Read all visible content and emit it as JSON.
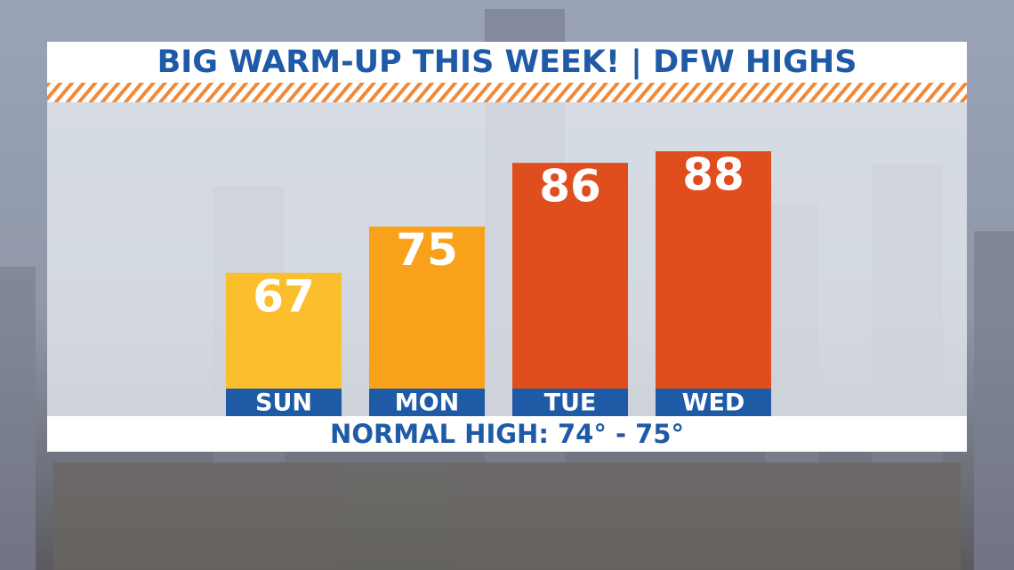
{
  "chart_data": {
    "type": "bar",
    "title": "BIG WARM-UP THIS WEEK! | DFW HIGHS",
    "categories": [
      "SUN",
      "MON",
      "TUE",
      "WED"
    ],
    "values": [
      67,
      75,
      86,
      88
    ],
    "colors": [
      "#fbbf2e",
      "#f9a11b",
      "#e04e1e",
      "#e04e1e"
    ],
    "ylim": [
      47,
      96
    ],
    "annotation": "NORMAL HIGH: 74° - 75°"
  }
}
